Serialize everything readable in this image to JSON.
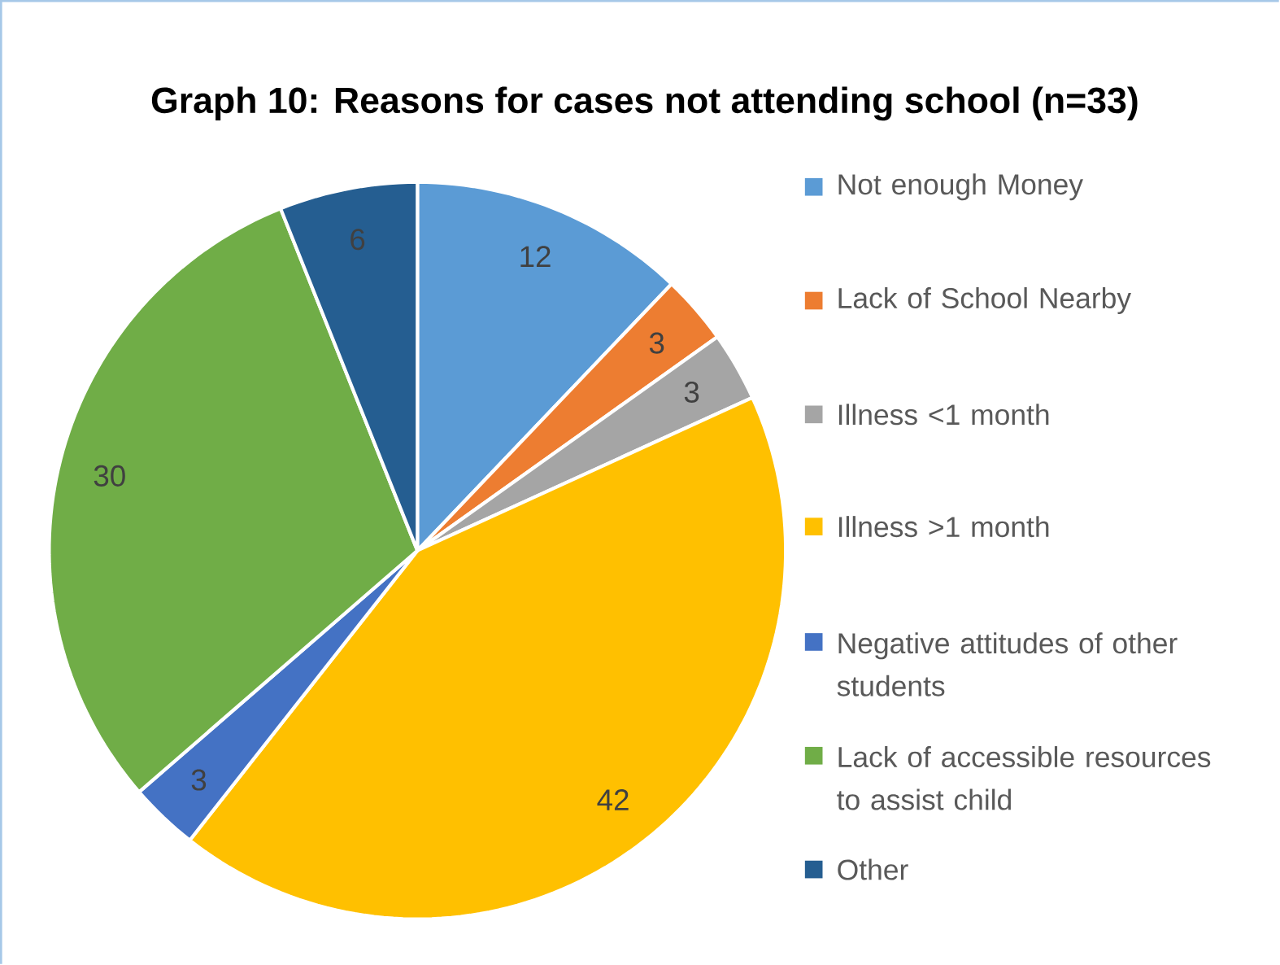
{
  "chart_data": {
    "type": "pie",
    "title": "Graph 10: Reasons for cases not attending school (n=33)",
    "categories": [
      "Not enough Money",
      "Lack of School Nearby",
      "Illness <1 month",
      "Illness >1 month",
      "Negative attitudes of other students",
      "Lack of accessible resources to assist child",
      "Other"
    ],
    "values": [
      12,
      3,
      3,
      42,
      3,
      30,
      6
    ],
    "colors": [
      "#5b9bd5",
      "#ed7d31",
      "#a5a5a5",
      "#ffc000",
      "#4472c4",
      "#70ad47",
      "#255e91"
    ],
    "data_labels": true,
    "legend": "right"
  }
}
